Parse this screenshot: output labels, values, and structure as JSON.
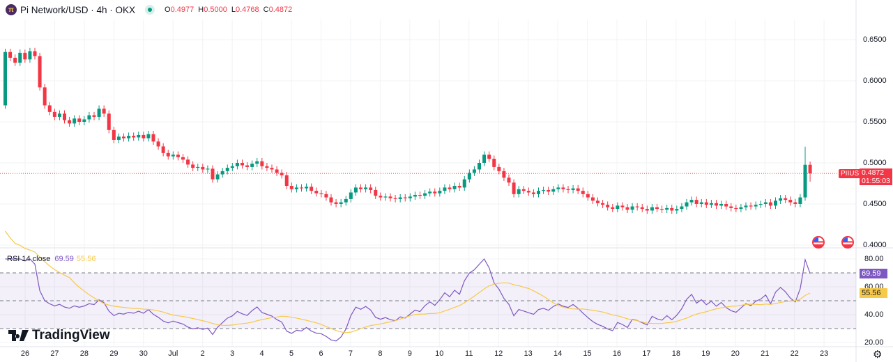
{
  "header": {
    "symbol_title": "Pi Network/USD · 4h · OKX",
    "logo_icon": "pi-network-logo",
    "market_status": "open",
    "ohlc": {
      "o_label": "O",
      "o": "0.4977",
      "h_label": "H",
      "h": "0.5000",
      "l_label": "L",
      "l": "0.4768",
      "c_label": "C",
      "c": "0.4872"
    }
  },
  "price_axis": {
    "ticks": [
      "0.6500",
      "0.6000",
      "0.5500",
      "0.5000",
      "0.4500",
      "0.4000"
    ]
  },
  "last_price": {
    "symbol": "PIIUSD",
    "price": "0.4872",
    "countdown": "01:55:03"
  },
  "rsi": {
    "title": "RSI 14 close",
    "value": "69.59",
    "ma_value": "55.56",
    "ticks": [
      "80.00",
      "60.00",
      "40.00",
      "20.00"
    ],
    "upper_band": 70,
    "middle_band": 50,
    "lower_band": 30
  },
  "time_axis": {
    "ticks": [
      "26",
      "27",
      "28",
      "29",
      "30",
      "Jul",
      "2",
      "3",
      "4",
      "5",
      "6",
      "7",
      "8",
      "9",
      "10",
      "11",
      "12",
      "13",
      "14",
      "15",
      "16",
      "17",
      "18",
      "19",
      "20",
      "21",
      "22",
      "23"
    ]
  },
  "branding": "TradingView",
  "colors": {
    "up": "#089981",
    "down": "#f23645",
    "rsi": "#7e57c2",
    "rsi_ma": "#f7c948"
  },
  "chart_data": {
    "type": "candlestick",
    "interval": "4h",
    "first_open": 0.57,
    "closes": [
      0.635,
      0.628,
      0.622,
      0.634,
      0.626,
      0.636,
      0.63,
      0.592,
      0.57,
      0.562,
      0.556,
      0.56,
      0.552,
      0.548,
      0.554,
      0.55,
      0.553,
      0.558,
      0.556,
      0.566,
      0.56,
      0.54,
      0.528,
      0.532,
      0.53,
      0.533,
      0.531,
      0.534,
      0.53,
      0.535,
      0.526,
      0.52,
      0.512,
      0.508,
      0.51,
      0.507,
      0.504,
      0.498,
      0.494,
      0.495,
      0.492,
      0.493,
      0.48,
      0.486,
      0.49,
      0.494,
      0.496,
      0.5,
      0.497,
      0.495,
      0.499,
      0.502,
      0.496,
      0.494,
      0.492,
      0.488,
      0.485,
      0.472,
      0.468,
      0.47,
      0.469,
      0.471,
      0.466,
      0.463,
      0.462,
      0.458,
      0.452,
      0.45,
      0.452,
      0.456,
      0.464,
      0.47,
      0.468,
      0.47,
      0.467,
      0.46,
      0.458,
      0.459,
      0.457,
      0.456,
      0.458,
      0.457,
      0.459,
      0.461,
      0.46,
      0.463,
      0.465,
      0.463,
      0.466,
      0.47,
      0.468,
      0.472,
      0.47,
      0.48,
      0.488,
      0.492,
      0.5,
      0.51,
      0.505,
      0.495,
      0.49,
      0.482,
      0.476,
      0.462,
      0.468,
      0.466,
      0.464,
      0.462,
      0.466,
      0.467,
      0.465,
      0.468,
      0.47,
      0.468,
      0.467,
      0.469,
      0.466,
      0.462,
      0.458,
      0.454,
      0.451,
      0.449,
      0.446,
      0.444,
      0.448,
      0.446,
      0.443,
      0.447,
      0.446,
      0.444,
      0.442,
      0.446,
      0.444,
      0.443,
      0.445,
      0.442,
      0.444,
      0.447,
      0.452,
      0.455,
      0.45,
      0.452,
      0.449,
      0.451,
      0.448,
      0.45,
      0.447,
      0.445,
      0.444,
      0.446,
      0.448,
      0.447,
      0.449,
      0.45,
      0.452,
      0.448,
      0.454,
      0.457,
      0.455,
      0.452,
      0.45,
      0.458,
      0.4977,
      0.4872
    ],
    "price_range": [
      0.4,
      0.65
    ],
    "rsi_range": [
      20,
      80
    ]
  }
}
